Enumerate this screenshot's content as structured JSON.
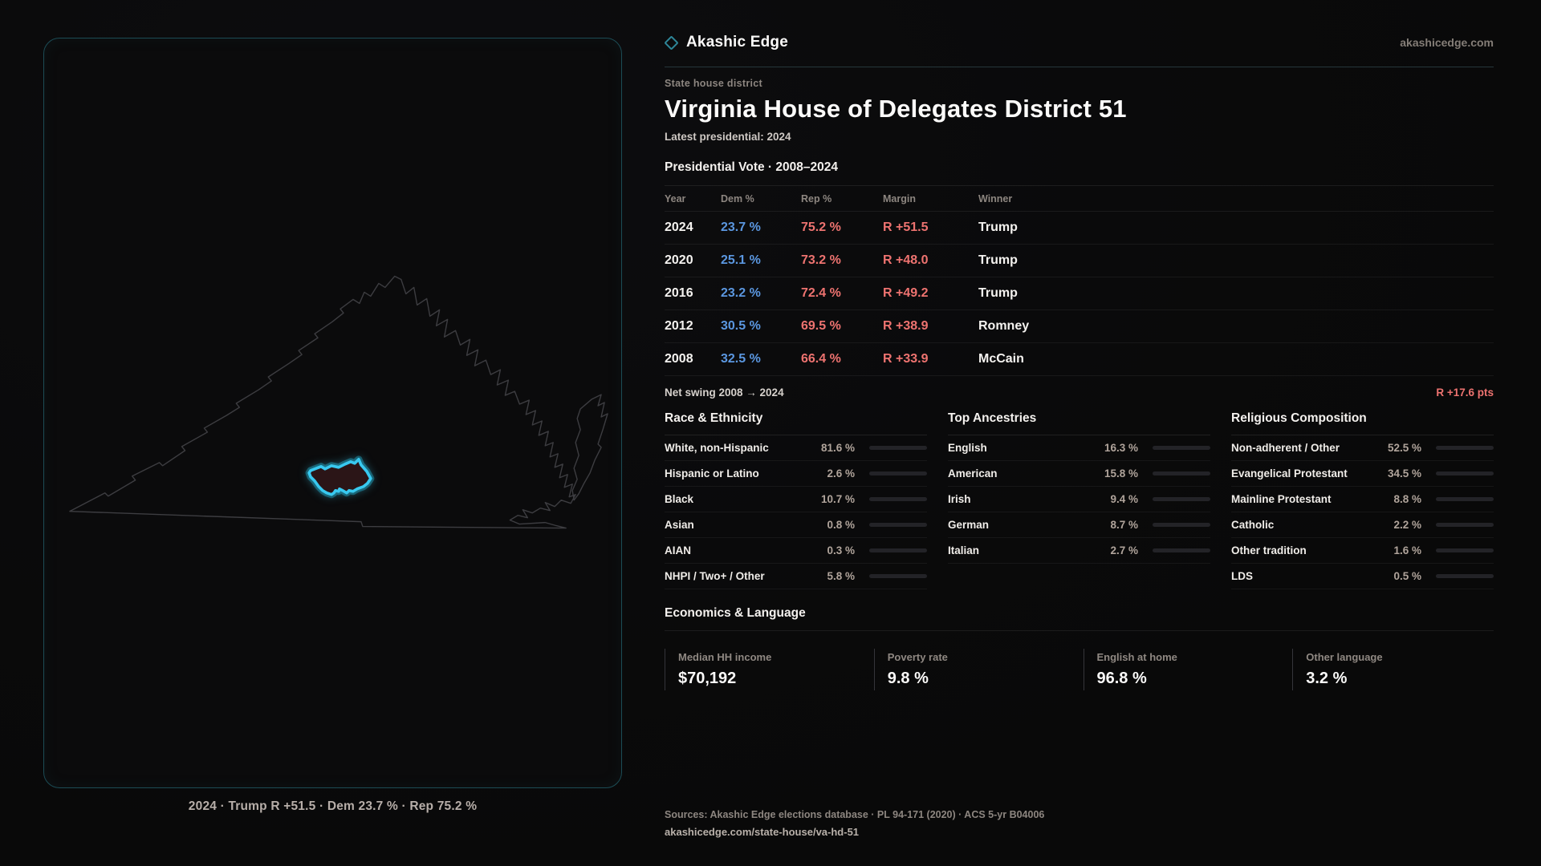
{
  "brand": {
    "name": "Akashic Edge",
    "domain": "akashicedge.com"
  },
  "header": {
    "kicker": "State house district",
    "title": "Virginia House of Delegates District 51",
    "subtitle": "Latest presidential: 2024"
  },
  "vote": {
    "heading": "Presidential Vote · 2008–2024",
    "columns": {
      "year": "Year",
      "dem": "Dem %",
      "rep": "Rep %",
      "margin": "Margin",
      "winner": "Winner"
    },
    "rows": [
      {
        "year": "2024",
        "dem": "23.7 %",
        "rep": "75.2 %",
        "margin": "R +51.5",
        "winner": "Trump"
      },
      {
        "year": "2020",
        "dem": "25.1 %",
        "rep": "73.2 %",
        "margin": "R +48.0",
        "winner": "Trump"
      },
      {
        "year": "2016",
        "dem": "23.2 %",
        "rep": "72.4 %",
        "margin": "R +49.2",
        "winner": "Trump"
      },
      {
        "year": "2012",
        "dem": "30.5 %",
        "rep": "69.5 %",
        "margin": "R +38.9",
        "winner": "Romney"
      },
      {
        "year": "2008",
        "dem": "32.5 %",
        "rep": "66.4 %",
        "margin": "R +33.9",
        "winner": "McCain"
      }
    ],
    "net_swing_label": "Net swing 2008 → 2024",
    "net_swing_value": "R +17.6 pts"
  },
  "stats": [
    {
      "heading": "Race & Ethnicity",
      "rows": [
        {
          "label": "White, non-Hispanic",
          "value": "81.6 %",
          "pct": 81.6
        },
        {
          "label": "Hispanic or Latino",
          "value": "2.6 %",
          "pct": 2.6
        },
        {
          "label": "Black",
          "value": "10.7 %",
          "pct": 10.7
        },
        {
          "label": "Asian",
          "value": "0.8 %",
          "pct": 0.8
        },
        {
          "label": "AIAN",
          "value": "0.3 %",
          "pct": 0.3
        },
        {
          "label": "NHPI / Two+ / Other",
          "value": "5.8 %",
          "pct": 5.8
        }
      ]
    },
    {
      "heading": "Top Ancestries",
      "rows": [
        {
          "label": "English",
          "value": "16.3 %",
          "pct": 16.3
        },
        {
          "label": "American",
          "value": "15.8 %",
          "pct": 15.8
        },
        {
          "label": "Irish",
          "value": "9.4 %",
          "pct": 9.4
        },
        {
          "label": "German",
          "value": "8.7 %",
          "pct": 8.7
        },
        {
          "label": "Italian",
          "value": "2.7 %",
          "pct": 2.7
        }
      ]
    },
    {
      "heading": "Religious Composition",
      "rows": [
        {
          "label": "Non-adherent / Other",
          "value": "52.5 %",
          "pct": 52.5
        },
        {
          "label": "Evangelical Protestant",
          "value": "34.5 %",
          "pct": 34.5
        },
        {
          "label": "Mainline Protestant",
          "value": "8.8 %",
          "pct": 8.8
        },
        {
          "label": "Catholic",
          "value": "2.2 %",
          "pct": 2.2
        },
        {
          "label": "Other tradition",
          "value": "1.6 %",
          "pct": 1.6
        },
        {
          "label": "LDS",
          "value": "0.5 %",
          "pct": 0.5
        }
      ]
    }
  ],
  "economics": {
    "heading": "Economics & Language",
    "stats": [
      {
        "label": "Median HH income",
        "value": "$70,192"
      },
      {
        "label": "Poverty rate",
        "value": "9.8 %"
      },
      {
        "label": "English at home",
        "value": "96.8 %"
      },
      {
        "label": "Other language",
        "value": "3.2 %"
      }
    ]
  },
  "map": {
    "caption": "2024 · Trump R +51.5 · Dem 23.7 % · Rep 75.2 %"
  },
  "footer": {
    "sources": "Sources: Akashic Edge elections database · PL 94-171 (2020) · ACS 5-yr B04006",
    "permalink": "akashicedge.com/state-house/va-hd-51"
  },
  "colors": {
    "dem": "#5b97e0",
    "rep": "#ee7370",
    "accent_cyan": "#38c9f0",
    "panel_border": "#1c4c55",
    "bar_fill": "#d3d1cf"
  }
}
